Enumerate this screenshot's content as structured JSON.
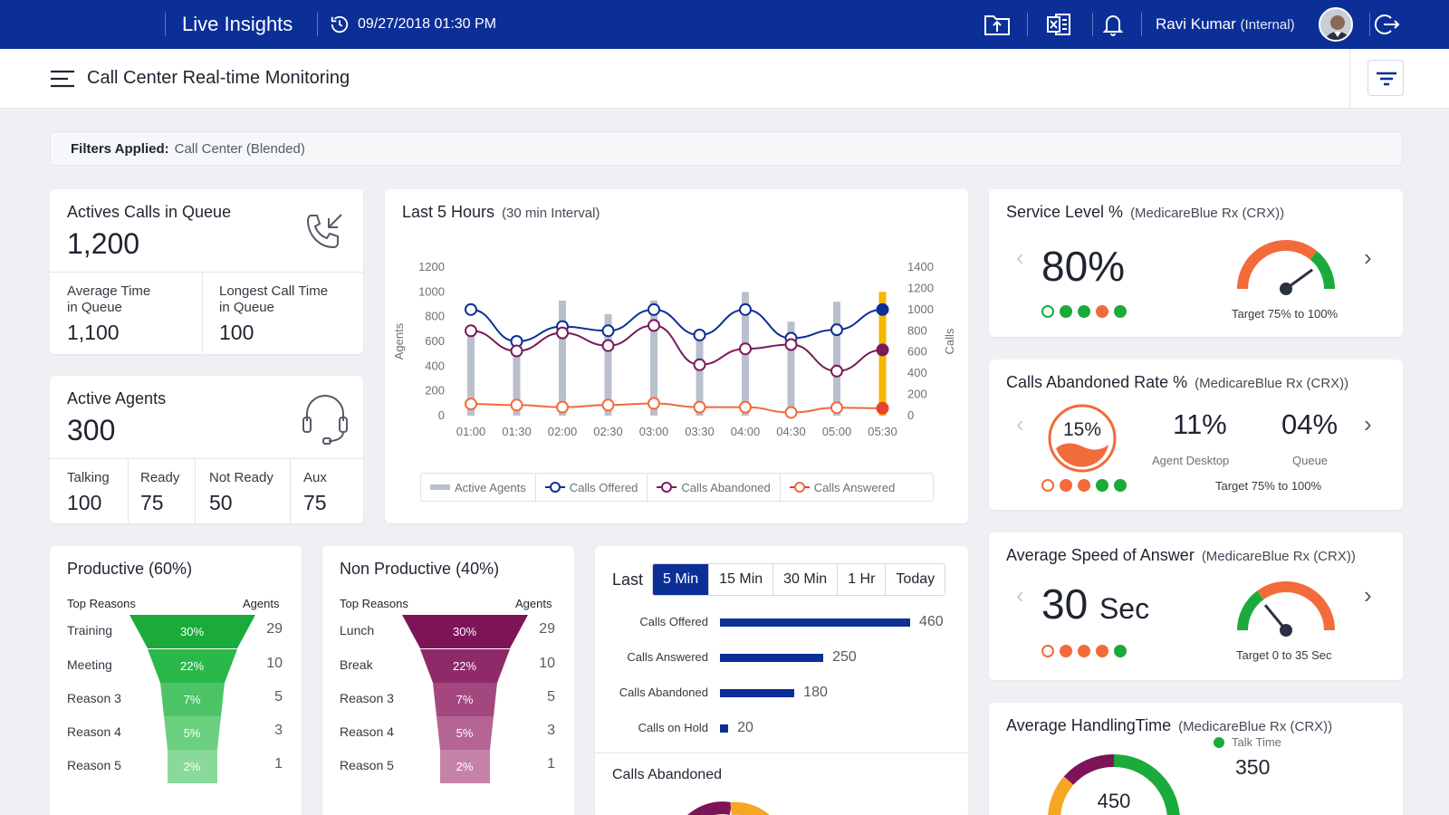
{
  "header": {
    "app_title": "Live Insights",
    "datetime": "09/27/2018 01:30 PM",
    "user_name": "Ravi Kumar",
    "user_role": "(Internal)"
  },
  "subheader": {
    "title": "Call Center Real-time Monitoring"
  },
  "filters": {
    "label": "Filters Applied:",
    "value": "Call Center (Blended)"
  },
  "calls_queue": {
    "title": "Actives Calls in Queue",
    "value": "1,200",
    "avg_label_1": "Average Time",
    "avg_label_2": "in Queue",
    "avg_value": "1,100",
    "longest_label_1": "Longest Call Time",
    "longest_label_2": "in Queue",
    "longest_value": "100"
  },
  "active_agents": {
    "title": "Active Agents",
    "value": "300",
    "stats": [
      {
        "label": "Talking",
        "value": "100"
      },
      {
        "label": "Ready",
        "value": "75"
      },
      {
        "label": "Not Ready",
        "value": "50"
      },
      {
        "label": "Aux",
        "value": "75"
      }
    ]
  },
  "chart_data": {
    "type": "line",
    "title": "Last 5 Hours",
    "subtitle": "(30 min Interval)",
    "ylabel": "Agents",
    "y2label": "Calls",
    "ylim": [
      0,
      1200
    ],
    "y2lim": [
      0,
      1400
    ],
    "yticks": [
      "0",
      "200",
      "400",
      "600",
      "800",
      "1000",
      "1200"
    ],
    "y2ticks": [
      "0",
      "200",
      "400",
      "600",
      "800",
      "1000",
      "1200",
      "1400"
    ],
    "categories": [
      "01:00",
      "01:30",
      "02:00",
      "02:30",
      "03:00",
      "03:30",
      "04:00",
      "04:30",
      "05:00",
      "05:30"
    ],
    "series": [
      {
        "name": "Active Agents",
        "type": "bar",
        "color": "#b9bfcc",
        "highlight_last": "#f5b800",
        "values": [
          680,
          620,
          930,
          820,
          930,
          680,
          1000,
          760,
          920,
          1000
        ]
      },
      {
        "name": "Calls Offered",
        "color": "#0b2f97",
        "values": [
          1000,
          700,
          840,
          800,
          1000,
          760,
          1000,
          730,
          810,
          1000
        ]
      },
      {
        "name": "Calls Abandoned",
        "color": "#7a1a5a",
        "values": [
          800,
          610,
          780,
          660,
          850,
          480,
          630,
          670,
          420,
          620
        ]
      },
      {
        "name": "Calls Answered",
        "color": "#f26b3a",
        "last_color": "#e8432e",
        "values": [
          110,
          100,
          80,
          100,
          115,
          80,
          80,
          30,
          75,
          70
        ]
      }
    ]
  },
  "productive": {
    "title": "Productive (60%)",
    "col1": "Top Reasons",
    "col2": "Agents",
    "rows": [
      {
        "label": "Training",
        "pct": "30%",
        "value": "29",
        "color": "#1aab3a"
      },
      {
        "label": "Meeting",
        "pct": "22%",
        "value": "10",
        "color": "#2bb84a"
      },
      {
        "label": "Reason 3",
        "pct": "7%",
        "value": "5",
        "color": "#4cc466"
      },
      {
        "label": "Reason 4",
        "pct": "5%",
        "value": "3",
        "color": "#6bd080"
      },
      {
        "label": "Reason 5",
        "pct": "2%",
        "value": "1",
        "color": "#89da98"
      }
    ]
  },
  "non_productive": {
    "title": "Non Productive (40%)",
    "col1": "Top Reasons",
    "col2": "Agents",
    "rows": [
      {
        "label": "Lunch",
        "pct": "30%",
        "value": "29",
        "color": "#7d1458"
      },
      {
        "label": "Break",
        "pct": "22%",
        "value": "10",
        "color": "#8e2a6a"
      },
      {
        "label": "Reason 3",
        "pct": "7%",
        "value": "5",
        "color": "#a3487f"
      },
      {
        "label": "Reason 4",
        "pct": "5%",
        "value": "3",
        "color": "#b56593"
      },
      {
        "label": "Reason 5",
        "pct": "2%",
        "value": "1",
        "color": "#c683a8"
      }
    ]
  },
  "last_stats": {
    "label": "Last",
    "tabs": [
      "5 Min",
      "15 Min",
      "30 Min",
      "1 Hr",
      "Today"
    ],
    "active_tab": 0,
    "max": 460,
    "bars": [
      {
        "label": "Calls Offered",
        "value": 460
      },
      {
        "label": "Calls Answered",
        "value": 250
      },
      {
        "label": "Calls Abandoned",
        "value": 180
      },
      {
        "label": "Calls on Hold",
        "value": 20
      }
    ],
    "abandoned_title": "Calls Abandoned"
  },
  "service_level": {
    "title": "Service Level %",
    "sub": "(MedicareBlue Rx (CRX))",
    "value": "80%",
    "target": "Target 75% to 100%",
    "gauge_value": 0.8
  },
  "abandoned_rate": {
    "title": "Calls Abandoned Rate %",
    "sub": "(MedicareBlue Rx (CRX))",
    "ring_value": "15%",
    "agent_value": "11%",
    "agent_label": "Agent Desktop",
    "queue_value": "04%",
    "queue_label": "Queue",
    "target": "Target 75% to 100%"
  },
  "speed_answer": {
    "title": "Average Speed of Answer",
    "sub": "(MedicareBlue Rx (CRX))",
    "value": "30",
    "unit": "Sec",
    "target": "Target 0 to 35 Sec",
    "gauge_value": 0.28
  },
  "handling_time": {
    "title": "Average HandlingTime",
    "sub": "(MedicareBlue Rx (CRX))",
    "center_value": "450",
    "legend_label": "Talk Time",
    "legend_value": "350"
  },
  "colors": {
    "brand": "#0b2f97",
    "green": "#1aab3a",
    "orange": "#f26b3a",
    "red": "#e8432e"
  }
}
